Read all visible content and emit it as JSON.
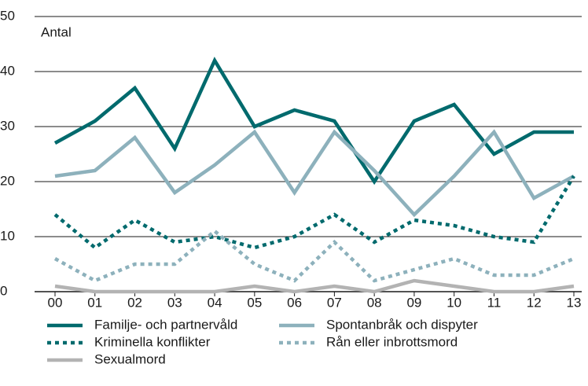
{
  "chart_data": {
    "type": "line",
    "annotation": "Antal",
    "categories": [
      "00",
      "01",
      "02",
      "03",
      "04",
      "05",
      "06",
      "07",
      "08",
      "09",
      "10",
      "11",
      "12",
      "13"
    ],
    "ylim": [
      0,
      50
    ],
    "yticks": [
      0,
      10,
      20,
      30,
      40,
      50
    ],
    "grid": true,
    "series": [
      {
        "name": "Familje- och partnervåld",
        "color": "#006a6d",
        "dash": "solid",
        "values": [
          27,
          31,
          37,
          26,
          42,
          30,
          33,
          31,
          20,
          31,
          34,
          25,
          29,
          29
        ]
      },
      {
        "name": "Spontanbråk och dispyter",
        "color": "#8db1bc",
        "dash": "solid",
        "values": [
          21,
          22,
          28,
          18,
          23,
          29,
          18,
          29,
          22,
          14,
          21,
          29,
          17,
          21
        ]
      },
      {
        "name": "Kriminella konflikter",
        "color": "#006a6d",
        "dash": "dotted",
        "values": [
          14,
          8,
          13,
          9,
          10,
          8,
          10,
          14,
          9,
          13,
          12,
          10,
          9,
          21
        ]
      },
      {
        "name": "Rån eller inbrottsmord",
        "color": "#8db1bc",
        "dash": "dotted",
        "values": [
          6,
          2,
          5,
          5,
          11,
          5,
          2,
          9,
          2,
          4,
          6,
          3,
          3,
          6
        ]
      },
      {
        "name": "Sexualmord",
        "color": "#b3b3b3",
        "dash": "solid",
        "values": [
          1,
          0,
          0,
          0,
          0,
          1,
          0,
          1,
          0,
          2,
          1,
          0,
          0,
          1
        ]
      }
    ]
  }
}
